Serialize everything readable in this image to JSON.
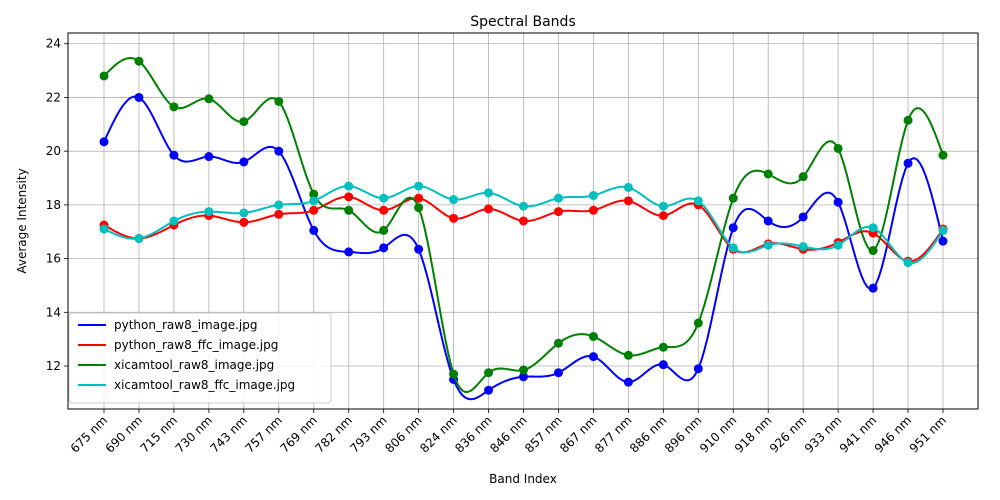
{
  "chart_data": {
    "type": "line",
    "title": "Spectral Bands",
    "xlabel": "Band Index",
    "ylabel": "Average Intensity",
    "ylim": [
      10.4,
      24.4
    ],
    "yticks": [
      12,
      14,
      16,
      18,
      20,
      22,
      24
    ],
    "grid": true,
    "legend_position": "lower-left",
    "categories": [
      "675 nm",
      "690 nm",
      "715 nm",
      "730 nm",
      "743 nm",
      "757 nm",
      "769 nm",
      "782 nm",
      "793 nm",
      "806 nm",
      "824 nm",
      "836 nm",
      "846 nm",
      "857 nm",
      "867 nm",
      "877 nm",
      "886 nm",
      "896 nm",
      "910 nm",
      "918 nm",
      "926 nm",
      "933 nm",
      "941 nm",
      "946 nm",
      "951 nm"
    ],
    "series": [
      {
        "name": "python_raw8_image.jpg",
        "color": "#0000ff",
        "values": [
          20.35,
          22.0,
          19.85,
          19.8,
          19.6,
          20.0,
          17.05,
          16.25,
          16.4,
          16.35,
          11.5,
          11.1,
          11.6,
          11.75,
          12.35,
          11.4,
          12.05,
          11.9,
          17.15,
          17.4,
          17.55,
          18.1,
          14.9,
          19.55,
          16.65
        ]
      },
      {
        "name": "python_raw8_ffc_image.jpg",
        "color": "#ff0000",
        "values": [
          17.25,
          16.75,
          17.25,
          17.6,
          17.35,
          17.65,
          17.8,
          18.3,
          17.8,
          18.25,
          17.5,
          17.85,
          17.4,
          17.75,
          17.8,
          18.15,
          17.6,
          18.0,
          16.35,
          16.55,
          16.35,
          16.6,
          16.95,
          15.9,
          17.1
        ]
      },
      {
        "name": "xicamtool_raw8_image.jpg",
        "color": "#008000",
        "values": [
          22.8,
          23.35,
          21.65,
          21.95,
          21.1,
          21.85,
          18.4,
          17.8,
          17.05,
          17.9,
          11.7,
          11.75,
          11.85,
          12.85,
          13.1,
          12.4,
          12.7,
          13.6,
          18.25,
          19.15,
          19.05,
          20.1,
          16.3,
          21.15,
          19.85
        ]
      },
      {
        "name": "xicamtool_raw8_ffc_image.jpg",
        "color": "#00bfbf",
        "values": [
          17.1,
          16.75,
          17.4,
          17.75,
          17.7,
          18.0,
          18.15,
          18.7,
          18.25,
          18.7,
          18.2,
          18.45,
          17.95,
          18.25,
          18.35,
          18.65,
          17.95,
          18.15,
          16.4,
          16.5,
          16.45,
          16.5,
          17.15,
          15.85,
          17.05
        ]
      }
    ]
  }
}
